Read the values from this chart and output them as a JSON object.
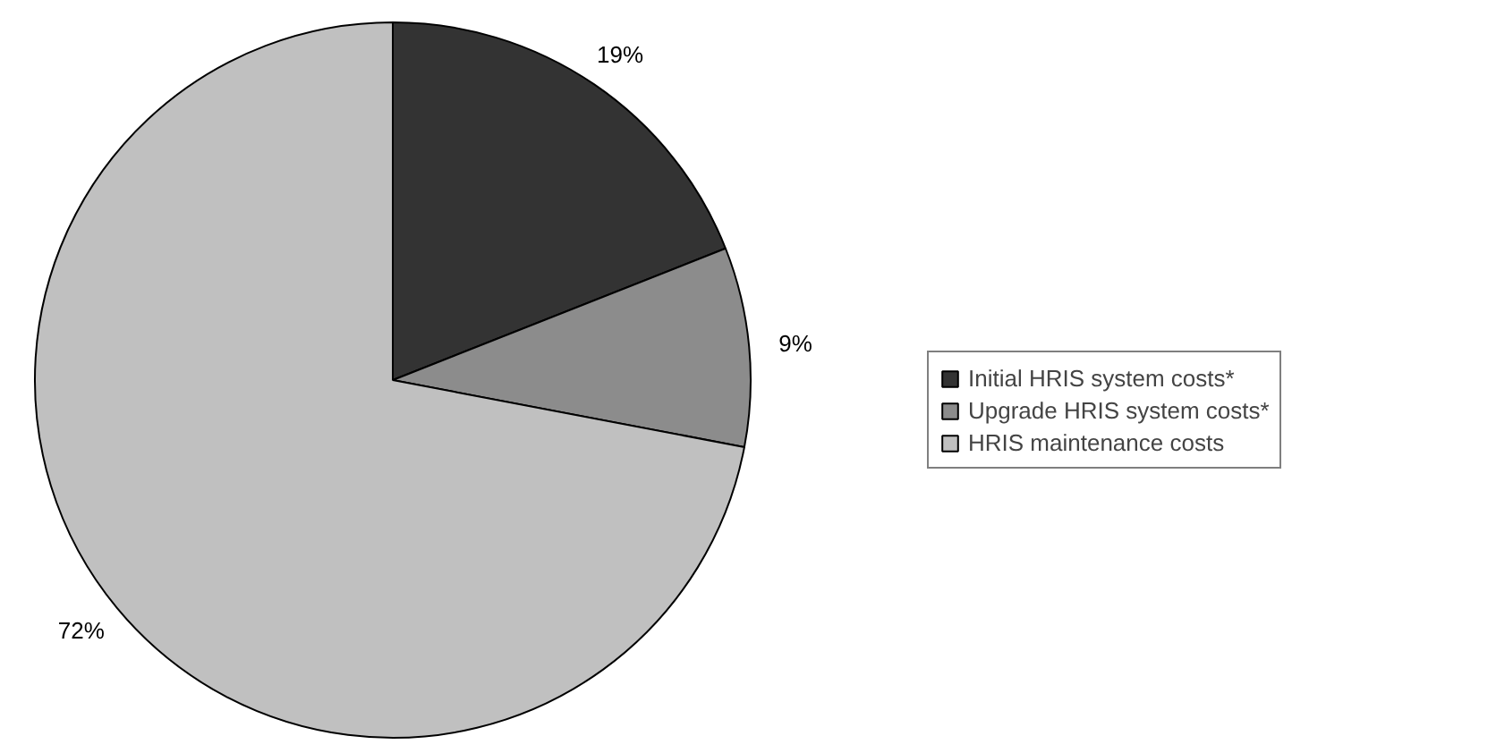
{
  "chart_data": {
    "type": "pie",
    "categories": [
      "Initial HRIS system costs*",
      "Upgrade HRIS system costs*",
      "HRIS maintenance costs"
    ],
    "values": [
      19,
      9,
      72
    ],
    "colors": [
      "#333333",
      "#8c8c8c",
      "#c0c0c0"
    ],
    "value_labels": [
      "19%",
      "9%",
      "72%"
    ],
    "legend": "right"
  }
}
